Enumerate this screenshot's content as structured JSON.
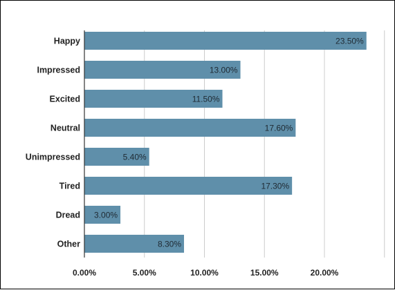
{
  "chart_data": {
    "type": "bar",
    "orientation": "horizontal",
    "categories": [
      "Happy",
      "Impressed",
      "Excited",
      "Neutral",
      "Unimpressed",
      "Tired",
      "Dread",
      "Other"
    ],
    "values": [
      23.5,
      13.0,
      11.5,
      17.6,
      5.4,
      17.3,
      3.0,
      8.3
    ],
    "data_labels": [
      "23.50%",
      "13.00%",
      "11.50%",
      "17.60%",
      "5.40%",
      "17.30%",
      "3.00%",
      "8.30%"
    ],
    "xticks": [
      0,
      5,
      10,
      15,
      20
    ],
    "xtick_labels": [
      "0.00%",
      "5.00%",
      "10.00%",
      "15.00%",
      "20.00%"
    ],
    "xlim": [
      0,
      25
    ],
    "grid": "vertical",
    "legend": "none",
    "title": "",
    "xlabel": "",
    "ylabel": "",
    "colors": {
      "bar": "#5f8faa",
      "grid": "#cccccc",
      "axis": "#333333"
    }
  }
}
